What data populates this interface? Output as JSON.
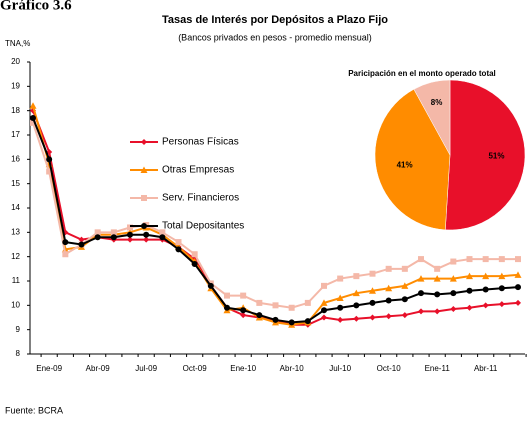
{
  "figure_label": "Gráfico 3.6",
  "source": "Fuente: BCRA",
  "chart_data": [
    {
      "type": "line",
      "title": "Tasas de Interés por Depósitos a Plazo Fijo",
      "subtitle": "(Bancos privados en pesos - promedio mensual)",
      "y_label": "TNA,%",
      "categories": [
        null,
        "Ene-09",
        null,
        null,
        "Abr-09",
        null,
        null,
        "Jul-09",
        null,
        null,
        "Oct-09",
        null,
        null,
        "Ene-10",
        null,
        null,
        "Abr-10",
        null,
        null,
        "Jul-10",
        null,
        null,
        "Oct-10",
        null,
        null,
        "Ene-11",
        null,
        null,
        "Abr-11",
        null,
        null
      ],
      "ylim": [
        8,
        20
      ],
      "yticks": [
        8,
        9,
        10,
        11,
        12,
        13,
        14,
        15,
        16,
        17,
        18,
        19,
        20
      ],
      "series": [
        {
          "name": "Personas Físicas",
          "color": "#e8102a",
          "marker": "diamond",
          "values": [
            18.0,
            16.3,
            13.0,
            12.7,
            12.8,
            12.7,
            12.7,
            12.7,
            12.7,
            12.4,
            11.9,
            10.8,
            9.9,
            9.6,
            9.5,
            9.4,
            9.2,
            9.2,
            9.5,
            9.4,
            9.45,
            9.5,
            9.55,
            9.6,
            9.75,
            9.75,
            9.85,
            9.9,
            10.0,
            10.05,
            10.1
          ]
        },
        {
          "name": "Otras Empresas",
          "color": "#ff8c00",
          "marker": "triangle",
          "values": [
            18.2,
            15.8,
            12.3,
            12.4,
            12.9,
            12.9,
            13.0,
            13.2,
            12.9,
            12.4,
            11.8,
            10.7,
            9.8,
            9.9,
            9.5,
            9.3,
            9.2,
            9.3,
            10.1,
            10.3,
            10.5,
            10.6,
            10.7,
            10.8,
            11.1,
            11.1,
            11.1,
            11.2,
            11.2,
            11.2,
            11.25
          ]
        },
        {
          "name": "Serv. Financieros",
          "color": "#f4b8a8",
          "marker": "square",
          "values": [
            17.5,
            15.5,
            12.1,
            12.5,
            13.0,
            13.0,
            13.2,
            13.3,
            13.0,
            12.6,
            12.1,
            10.9,
            10.4,
            10.4,
            10.1,
            10.0,
            9.9,
            10.1,
            10.8,
            11.1,
            11.2,
            11.3,
            11.5,
            11.5,
            11.9,
            11.5,
            11.8,
            11.9,
            11.9,
            11.9,
            11.9
          ]
        },
        {
          "name": "Total Depositantes",
          "color": "#000000",
          "marker": "circle",
          "values": [
            17.7,
            16.0,
            12.6,
            12.5,
            12.8,
            12.8,
            12.9,
            12.9,
            12.8,
            12.3,
            11.7,
            10.8,
            9.9,
            9.8,
            9.6,
            9.4,
            9.3,
            9.35,
            9.8,
            9.9,
            10.0,
            10.1,
            10.2,
            10.25,
            10.5,
            10.45,
            10.5,
            10.6,
            10.65,
            10.7,
            10.75
          ]
        }
      ]
    },
    {
      "type": "pie",
      "title": "Paricipación en el monto operado total",
      "values": [
        51,
        41,
        8
      ],
      "value_labels": [
        "51%",
        "41%",
        "8%"
      ],
      "colors": [
        "#e8102a",
        "#ff8c00",
        "#f4b8a8"
      ]
    }
  ]
}
